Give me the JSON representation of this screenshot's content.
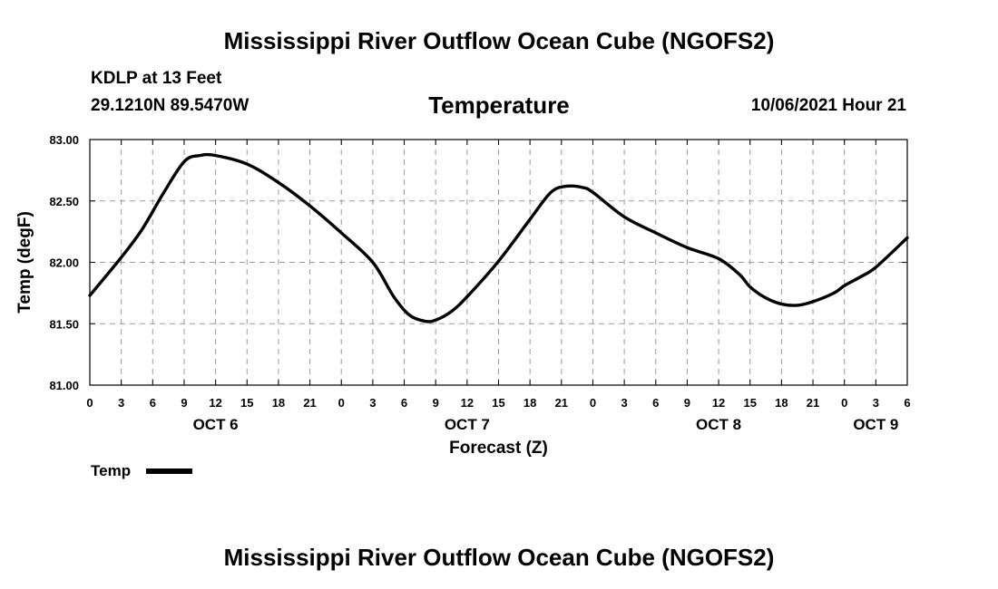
{
  "chart_data": {
    "type": "line",
    "title": "Mississippi River Outflow Ocean Cube (NGOFS2)",
    "footer_title": "Mississippi River Outflow Ocean Cube (NGOFS2)",
    "subtitle": "Temperature",
    "station": "KDLP at 13 Feet",
    "location": "29.1210N  89.5470W",
    "run_time": "10/06/2021 Hour 21",
    "xlabel": "Forecast (Z)",
    "ylabel": "Temp (degF)",
    "xlim": [
      0,
      78
    ],
    "ylim": [
      81.0,
      83.0
    ],
    "yticks": [
      81.0,
      81.5,
      82.0,
      82.5,
      83.0
    ],
    "ytick_labels": [
      "81.00",
      "81.50",
      "82.00",
      "82.50",
      "83.00"
    ],
    "xticks": [
      0,
      3,
      6,
      9,
      12,
      15,
      18,
      21,
      24,
      27,
      30,
      33,
      36,
      39,
      42,
      45,
      48,
      51,
      54,
      57,
      60,
      63,
      66,
      69,
      72,
      75,
      78
    ],
    "xtick_labels": [
      "0",
      "3",
      "6",
      "9",
      "12",
      "15",
      "18",
      "21",
      "0",
      "3",
      "6",
      "9",
      "12",
      "15",
      "18",
      "21",
      "0",
      "3",
      "6",
      "9",
      "12",
      "15",
      "18",
      "21",
      "0",
      "3",
      "6"
    ],
    "day_labels": [
      {
        "x": 12,
        "label": "OCT 6"
      },
      {
        "x": 36,
        "label": "OCT 7"
      },
      {
        "x": 60,
        "label": "OCT 8"
      },
      {
        "x": 75,
        "label": "OCT 9"
      }
    ],
    "grid": true,
    "legend": {
      "placement": "bottom-left",
      "label": "Temp"
    },
    "series": [
      {
        "name": "Temp",
        "x": [
          0,
          3,
          5,
          7,
          9,
          10.5,
          12,
          15,
          18,
          21,
          24,
          27,
          29,
          30.5,
          32,
          33,
          34.5,
          36,
          39,
          42,
          44,
          45.5,
          47,
          48,
          51,
          54,
          57,
          60,
          62,
          63,
          64.5,
          66,
          67.5,
          69,
          71,
          72,
          73.5,
          75,
          78
        ],
        "y": [
          81.73,
          82.04,
          82.27,
          82.56,
          82.82,
          82.87,
          82.87,
          82.8,
          82.65,
          82.46,
          82.24,
          82.0,
          81.72,
          81.57,
          81.52,
          81.53,
          81.6,
          81.72,
          82.01,
          82.35,
          82.57,
          82.62,
          82.61,
          82.57,
          82.37,
          82.24,
          82.12,
          82.03,
          81.9,
          81.8,
          81.71,
          81.66,
          81.65,
          81.68,
          81.75,
          81.81,
          81.88,
          81.96,
          82.2
        ],
        "color": "#000000"
      }
    ]
  }
}
